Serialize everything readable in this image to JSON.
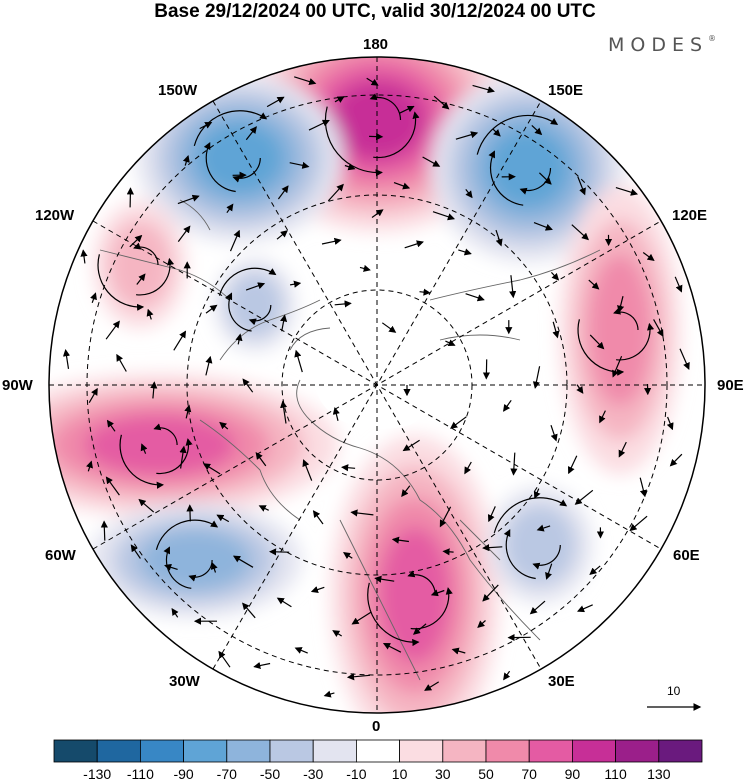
{
  "title": "Base 29/12/2024 00 UTC, valid 30/12/2024 00 UTC",
  "brand": {
    "name": "MODES",
    "mark": "®"
  },
  "longitude_labels": {
    "lon_180": "180",
    "lon_150e": "150E",
    "lon_120e": "120E",
    "lon_90e": "90E",
    "lon_60e": "60E",
    "lon_30e": "30E",
    "lon_0": "0",
    "lon_30w": "30W",
    "lon_60w": "60W",
    "lon_90w": "90W",
    "lon_120w": "120W",
    "lon_150w": "150W"
  },
  "reference_vector": {
    "label": "10"
  },
  "colorbar": {
    "colors": [
      "#154a6b",
      "#1f67a0",
      "#3887c5",
      "#5fa4d6",
      "#8eb4dc",
      "#bac8e3",
      "#e3e4f0",
      "#ffffff",
      "#fbdde2",
      "#f5b5c2",
      "#f08aaa",
      "#e45ba3",
      "#c72f97",
      "#9b1f8a",
      "#6a1a7e"
    ],
    "ticks": [
      "-130",
      "-110",
      "-90",
      "-70",
      "-50",
      "-30",
      "-10",
      "10",
      "30",
      "50",
      "70",
      "90",
      "110",
      "130"
    ]
  },
  "anomaly_features": [
    {
      "id": "high-north-pacific",
      "level": 110
    },
    {
      "id": "low-aleutian-west",
      "level": -90
    },
    {
      "id": "low-bering-east",
      "level": -90
    },
    {
      "id": "high-alaska",
      "level": 50
    },
    {
      "id": "low-canada",
      "level": -50
    },
    {
      "id": "high-greenland-atlantic",
      "level": 90
    },
    {
      "id": "low-north-atlantic",
      "level": -70
    },
    {
      "id": "high-europe",
      "level": 90
    },
    {
      "id": "low-russia",
      "level": -50
    },
    {
      "id": "high-siberia",
      "level": 70
    }
  ]
}
